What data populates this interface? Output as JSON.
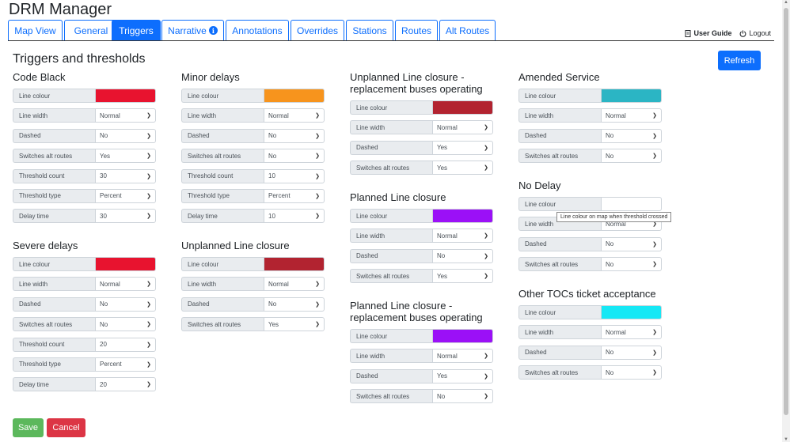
{
  "app": {
    "title": "DRM Manager"
  },
  "tabs": [
    {
      "label": "Map View"
    },
    {
      "label": "General"
    },
    {
      "label": "Triggers"
    },
    {
      "label": "Narrative"
    },
    {
      "label": "Annotations"
    },
    {
      "label": "Overrides"
    },
    {
      "label": "Stations"
    },
    {
      "label": "Routes"
    },
    {
      "label": "Alt Routes"
    }
  ],
  "header": {
    "user_guide": "User Guide",
    "logout": "Logout"
  },
  "page": {
    "title": "Triggers and thresholds",
    "refresh": "Refresh"
  },
  "labels": {
    "line_colour": "Line colour",
    "line_width": "Line width",
    "dashed": "Dashed",
    "switches_alt_routes": "Switches alt routes",
    "threshold_count": "Threshold count",
    "threshold_type": "Threshold type",
    "delay_time": "Delay time"
  },
  "groups": {
    "code_black": {
      "title": "Code Black",
      "colour": "#e8132f",
      "line_width": "Normal",
      "dashed": "No",
      "switches_alt_routes": "Yes",
      "threshold_count": "30",
      "threshold_type": "Percent",
      "delay_time": "30"
    },
    "severe_delays": {
      "title": "Severe delays",
      "colour": "#e8132f",
      "line_width": "Normal",
      "dashed": "No",
      "switches_alt_routes": "No",
      "threshold_count": "20",
      "threshold_type": "Percent",
      "delay_time": "20"
    },
    "minor_delays": {
      "title": "Minor delays",
      "colour": "#f7941d",
      "line_width": "Normal",
      "dashed": "No",
      "switches_alt_routes": "No",
      "threshold_count": "10",
      "threshold_type": "Percent",
      "delay_time": "10"
    },
    "unplanned_line_closure": {
      "title": "Unplanned Line closure",
      "colour": "#b22330",
      "line_width": "Normal",
      "dashed": "No",
      "switches_alt_routes": "Yes"
    },
    "unplanned_replacement": {
      "title_line1": "Unplanned Line closure -",
      "title_line2": "replacement buses operating",
      "colour": "#b22330",
      "line_width": "Normal",
      "dashed": "Yes",
      "switches_alt_routes": "Yes"
    },
    "planned_line_closure": {
      "title": "Planned Line closure",
      "colour": "#9b10f7",
      "line_width": "Normal",
      "dashed": "No",
      "switches_alt_routes": "Yes"
    },
    "planned_replacement": {
      "title_line1": "Planned Line closure -",
      "title_line2": "replacement buses operating",
      "colour": "#9b10f7",
      "line_width": "Normal",
      "dashed": "Yes",
      "switches_alt_routes": "No"
    },
    "amended_service": {
      "title": "Amended Service",
      "colour": "#2bb5c4",
      "line_width": "Normal",
      "dashed": "No",
      "switches_alt_routes": "No"
    },
    "no_delay": {
      "title": "No Delay",
      "colour": "#ffffff",
      "line_width": "Normal",
      "dashed": "No",
      "switches_alt_routes": "No"
    },
    "other_tocs": {
      "title": "Other TOCs ticket acceptance",
      "colour": "#16e8f5",
      "line_width": "Normal",
      "dashed": "No",
      "switches_alt_routes": "No"
    }
  },
  "tooltip": "Line colour on map when threshold crossed",
  "footer": {
    "save": "Save",
    "cancel": "Cancel"
  }
}
